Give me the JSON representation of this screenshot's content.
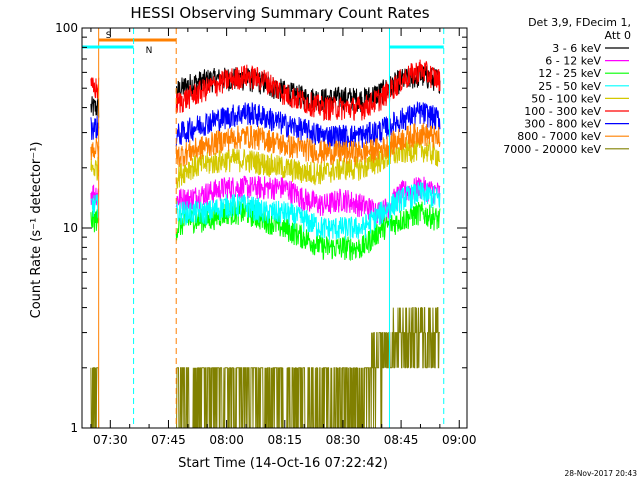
{
  "chart_data": {
    "type": "line",
    "title": "HESSI Observing Summary Count Rates",
    "xlabel": "Start Time (14-Oct-16 07:22:42)",
    "ylabel": "Count Rate (s⁻¹ detector⁻¹)",
    "y_scale": "log",
    "ylim": [
      1,
      100
    ],
    "xlim": [
      "07:22:42",
      "09:02:00"
    ],
    "x_tick_labels": [
      "07:30",
      "07:45",
      "08:00",
      "08:15",
      "08:30",
      "08:45",
      "09:00"
    ],
    "y_tick_labels": [
      "1",
      "10",
      "100"
    ],
    "legend": {
      "placement": "top-right",
      "header": [
        "Det 3,9, FDecim 1,",
        "Att 0"
      ]
    },
    "x": [
      "07:25",
      "07:27",
      "07:47",
      "07:50",
      "07:55",
      "08:00",
      "08:05",
      "08:10",
      "08:15",
      "08:20",
      "08:25",
      "08:30",
      "08:35",
      "08:40",
      "08:45",
      "08:50",
      "08:55"
    ],
    "gaps": [
      [
        "07:27",
        "07:47"
      ]
    ],
    "series": [
      {
        "name": "3 - 6 keV",
        "color": "#000000",
        "values": [
          40,
          40,
          48,
          52,
          55,
          56,
          56,
          53,
          48,
          45,
          44,
          45,
          44,
          48,
          55,
          58,
          55
        ]
      },
      {
        "name": "6 - 12 keV",
        "color": "#ff00ff",
        "values": [
          15,
          15,
          14,
          14,
          15,
          16,
          16,
          16,
          16,
          14,
          13,
          14,
          13,
          12,
          15,
          16,
          15
        ]
      },
      {
        "name": "12 - 25 keV",
        "color": "#00ff00",
        "values": [
          11,
          11,
          10,
          11,
          11,
          12,
          12,
          11,
          10,
          9,
          8,
          8,
          8,
          10,
          11,
          12,
          11
        ]
      },
      {
        "name": "25 - 50 keV",
        "color": "#00ffff",
        "values": [
          13,
          13,
          12,
          12,
          12,
          13,
          13,
          12,
          12,
          11,
          10,
          10,
          10,
          12,
          14,
          15,
          14
        ]
      },
      {
        "name": "50 - 100 keV",
        "color": "#d4c800",
        "values": [
          20,
          20,
          18,
          20,
          21,
          22,
          22,
          21,
          20,
          19,
          19,
          20,
          20,
          22,
          24,
          25,
          23
        ]
      },
      {
        "name": "100 - 300 keV",
        "color": "#ff0000",
        "values": [
          50,
          50,
          42,
          45,
          50,
          55,
          58,
          55,
          47,
          43,
          40,
          40,
          40,
          45,
          55,
          62,
          55
        ]
      },
      {
        "name": "300 - 800 keV",
        "color": "#0000ff",
        "values": [
          32,
          32,
          29,
          31,
          34,
          36,
          38,
          36,
          33,
          31,
          29,
          29,
          29,
          31,
          35,
          38,
          35
        ]
      },
      {
        "name": "800 - 7000 keV",
        "color": "#ff8000",
        "values": [
          25,
          25,
          23,
          24,
          26,
          28,
          29,
          28,
          26,
          25,
          24,
          24,
          24,
          25,
          28,
          30,
          28
        ]
      },
      {
        "name": "7000 - 20000 keV",
        "color": "#808000",
        "values": [
          1.5,
          1.5,
          1.5,
          1.5,
          1.6,
          1.6,
          1.6,
          1.6,
          1.5,
          1.5,
          1.5,
          1.5,
          1.6,
          2.3,
          2.8,
          3.2,
          3.0
        ]
      }
    ],
    "annotations": [
      {
        "label": "S",
        "color": "#ff8000",
        "start": "07:27",
        "end": "07:47",
        "style": "solid start, dashed end"
      },
      {
        "label": "N",
        "color": "#00ffff",
        "start": "07:22:42",
        "end": "07:36",
        "style": "dashed end"
      },
      {
        "label": "",
        "color": "#00ffff",
        "start": "08:42",
        "end": "08:56",
        "style": "solid start, dashed end"
      }
    ],
    "timestamp": "28-Nov-2017 20:43"
  }
}
